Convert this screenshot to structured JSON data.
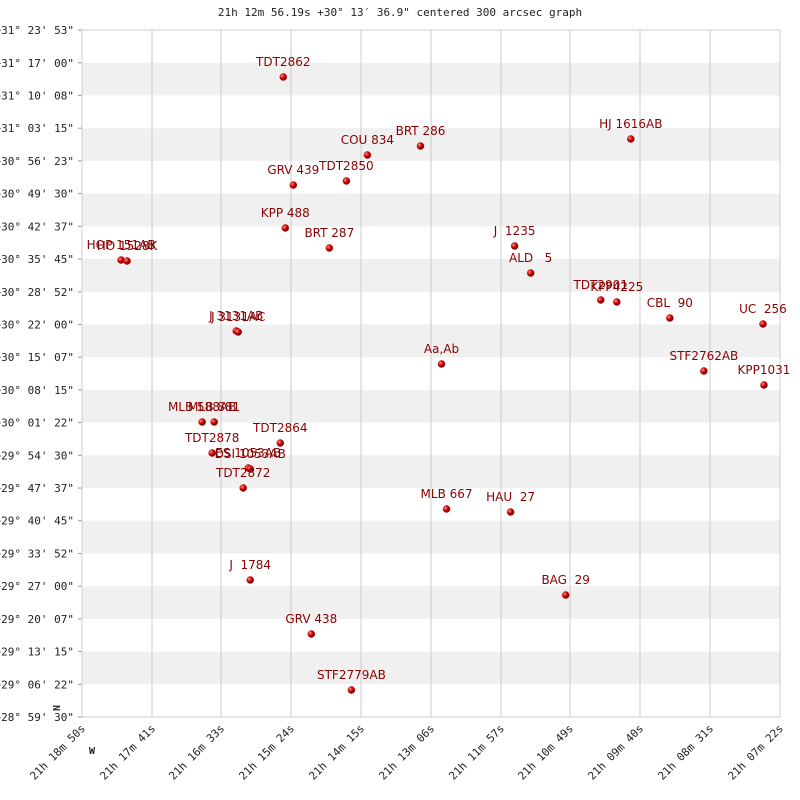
{
  "chart_data": {
    "type": "scatter",
    "title": "21h 12m 56.19s +30° 13′ 36.9\" centered 300 arcsec graph",
    "compass": {
      "north": "N",
      "west": "W"
    },
    "color": "#cc0000",
    "label_color": "#8b0000",
    "grid": true,
    "xlim": [
      21.31389,
      21.12278
    ],
    "ylim": [
      28.99167,
      31.39806
    ],
    "xticks": [
      {
        "value": 21.31389,
        "label": "21h 18m 50s"
      },
      {
        "value": 21.29472,
        "label": "21h 17m 41s"
      },
      {
        "value": 21.27583,
        "label": "21h 16m 33s"
      },
      {
        "value": 21.25667,
        "label": "21h 15m 24s"
      },
      {
        "value": 21.2375,
        "label": "21h 14m 15s"
      },
      {
        "value": 21.21833,
        "label": "21h 13m 06s"
      },
      {
        "value": 21.19917,
        "label": "21h 11m 57s"
      },
      {
        "value": 21.18028,
        "label": "21h 10m 49s"
      },
      {
        "value": 21.16111,
        "label": "21h 09m 40s"
      },
      {
        "value": 21.14194,
        "label": "21h 08m 31s"
      },
      {
        "value": 21.12278,
        "label": "21h 07m 22s"
      }
    ],
    "yticks": [
      {
        "value": 31.39806,
        "label": "+31° 23' 53\""
      },
      {
        "value": 31.28333,
        "label": "+31° 17' 00\""
      },
      {
        "value": 31.16889,
        "label": "+31° 10' 08\""
      },
      {
        "value": 31.05417,
        "label": "+31° 03' 15\""
      },
      {
        "value": 30.93972,
        "label": "+30° 56' 23\""
      },
      {
        "value": 30.825,
        "label": "+30° 49' 30\""
      },
      {
        "value": 30.71028,
        "label": "+30° 42' 37\""
      },
      {
        "value": 30.59583,
        "label": "+30° 35' 45\""
      },
      {
        "value": 30.48111,
        "label": "+30° 28' 52\""
      },
      {
        "value": 30.36667,
        "label": "+30° 22' 00\""
      },
      {
        "value": 30.25194,
        "label": "+30° 15' 07\""
      },
      {
        "value": 30.1375,
        "label": "+30° 08' 15\""
      },
      {
        "value": 30.02278,
        "label": "+30° 01' 22\""
      },
      {
        "value": 29.90833,
        "label": "+29° 54' 30\""
      },
      {
        "value": 29.79361,
        "label": "+29° 47' 37\""
      },
      {
        "value": 29.67917,
        "label": "+29° 40' 45\""
      },
      {
        "value": 29.56444,
        "label": "+29° 33' 52\""
      },
      {
        "value": 29.45,
        "label": "+29° 27' 00\""
      },
      {
        "value": 29.33528,
        "label": "+29° 20' 07\""
      },
      {
        "value": 29.22083,
        "label": "+29° 13' 15\""
      },
      {
        "value": 29.10611,
        "label": "+29° 06' 22\""
      },
      {
        "value": 28.99167,
        "label": "+28° 59' 30\""
      }
    ],
    "points": [
      {
        "label": "TDT2862",
        "x": 21.25878,
        "y": 31.23343
      },
      {
        "label": "COU 834",
        "x": 21.23575,
        "y": 30.96021
      },
      {
        "label": "BRT 286",
        "x": 21.22121,
        "y": 30.99174
      },
      {
        "label": "HJ 1616AB",
        "x": 21.16363,
        "y": 31.01625
      },
      {
        "label": "GRV 439",
        "x": 21.25604,
        "y": 30.85513
      },
      {
        "label": "TDT2850",
        "x": 21.2415,
        "y": 30.86914
      },
      {
        "label": "KPP 488",
        "x": 21.25823,
        "y": 30.70451
      },
      {
        "label": "BRT 287",
        "x": 21.24617,
        "y": 30.63445
      },
      {
        "label": "J  1235",
        "x": 21.19544,
        "y": 30.64146
      },
      {
        "label": "ALD   5",
        "x": 21.19105,
        "y": 30.54688
      },
      {
        "label": "HOP 151AB",
        "x": 21.3032,
        "y": 30.59242
      },
      {
        "label": "HO 1528K",
        "x": 21.30155,
        "y": 30.58891
      },
      {
        "label": "TDT2901",
        "x": 21.17186,
        "y": 30.4523
      },
      {
        "label": "KPP4225",
        "x": 21.16747,
        "y": 30.4453
      },
      {
        "label": "CBL  90",
        "x": 21.15294,
        "y": 30.38925
      },
      {
        "label": "UC  256",
        "x": 21.12744,
        "y": 30.36824
      },
      {
        "label": "J 3131AB",
        "x": 21.27166,
        "y": 30.34372
      },
      {
        "label": "J 3131AC",
        "x": 21.27112,
        "y": 30.34021
      },
      {
        "label": "Aa,Ab",
        "x": 21.21546,
        "y": 30.22812
      },
      {
        "label": "STF2762AB",
        "x": 21.14362,
        "y": 30.20361
      },
      {
        "label": "KPP1031",
        "x": 21.12717,
        "y": 30.15457
      },
      {
        "label": "MLB 588AB",
        "x": 21.28099,
        "y": 30.02496
      },
      {
        "label": "MLB 881",
        "x": 21.2777,
        "y": 30.02496
      },
      {
        "label": "TDT2878",
        "x": 21.27825,
        "y": 29.91638
      },
      {
        "label": "TDT2864",
        "x": 21.2596,
        "y": 29.9514
      },
      {
        "label": "ES 1053AB",
        "x": 21.26837,
        "y": 29.86383
      },
      {
        "label": "DSI 1053AB",
        "x": 21.26783,
        "y": 29.86033
      },
      {
        "label": "TDT2872",
        "x": 21.26975,
        "y": 29.79378
      },
      {
        "label": "MLB 667",
        "x": 21.21408,
        "y": 29.72022
      },
      {
        "label": "HAU  27",
        "x": 21.19654,
        "y": 29.70971
      },
      {
        "label": "J  1784",
        "x": 21.26783,
        "y": 29.47152
      },
      {
        "label": "BAG  29",
        "x": 21.18146,
        "y": 29.41898
      },
      {
        "label": "GRV 438",
        "x": 21.2511,
        "y": 29.28237
      },
      {
        "label": "STF2779AB",
        "x": 21.24013,
        "y": 29.08621
      }
    ]
  }
}
